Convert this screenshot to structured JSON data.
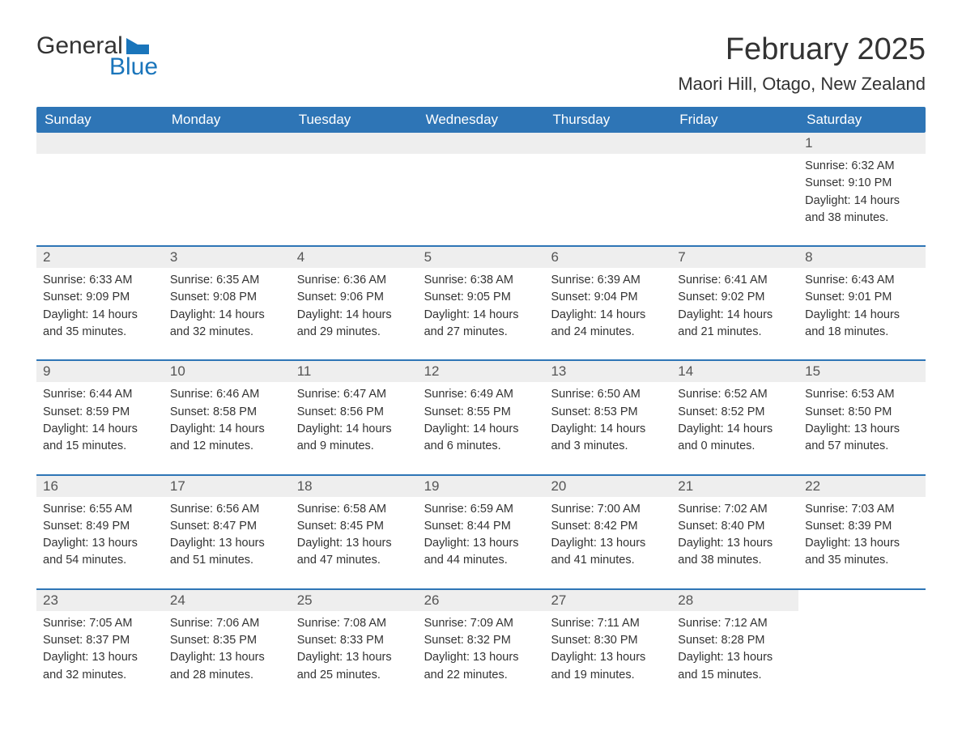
{
  "logo": {
    "general": "General",
    "blue": "Blue"
  },
  "title": "February 2025",
  "location": "Maori Hill, Otago, New Zealand",
  "colors": {
    "header_bg": "#2e75b6",
    "header_text": "#ffffff",
    "day_number_bg": "#eeeeee",
    "day_number_text": "#555555",
    "body_text": "#333333",
    "border": "#2e75b6",
    "logo_blue": "#1a75bb"
  },
  "day_names": [
    "Sunday",
    "Monday",
    "Tuesday",
    "Wednesday",
    "Thursday",
    "Friday",
    "Saturday"
  ],
  "weeks": [
    [
      {
        "empty": true
      },
      {
        "empty": true
      },
      {
        "empty": true
      },
      {
        "empty": true
      },
      {
        "empty": true
      },
      {
        "empty": true
      },
      {
        "num": "1",
        "sunrise": "Sunrise: 6:32 AM",
        "sunset": "Sunset: 9:10 PM",
        "daylight1": "Daylight: 14 hours",
        "daylight2": "and 38 minutes."
      }
    ],
    [
      {
        "num": "2",
        "sunrise": "Sunrise: 6:33 AM",
        "sunset": "Sunset: 9:09 PM",
        "daylight1": "Daylight: 14 hours",
        "daylight2": "and 35 minutes."
      },
      {
        "num": "3",
        "sunrise": "Sunrise: 6:35 AM",
        "sunset": "Sunset: 9:08 PM",
        "daylight1": "Daylight: 14 hours",
        "daylight2": "and 32 minutes."
      },
      {
        "num": "4",
        "sunrise": "Sunrise: 6:36 AM",
        "sunset": "Sunset: 9:06 PM",
        "daylight1": "Daylight: 14 hours",
        "daylight2": "and 29 minutes."
      },
      {
        "num": "5",
        "sunrise": "Sunrise: 6:38 AM",
        "sunset": "Sunset: 9:05 PM",
        "daylight1": "Daylight: 14 hours",
        "daylight2": "and 27 minutes."
      },
      {
        "num": "6",
        "sunrise": "Sunrise: 6:39 AM",
        "sunset": "Sunset: 9:04 PM",
        "daylight1": "Daylight: 14 hours",
        "daylight2": "and 24 minutes."
      },
      {
        "num": "7",
        "sunrise": "Sunrise: 6:41 AM",
        "sunset": "Sunset: 9:02 PM",
        "daylight1": "Daylight: 14 hours",
        "daylight2": "and 21 minutes."
      },
      {
        "num": "8",
        "sunrise": "Sunrise: 6:43 AM",
        "sunset": "Sunset: 9:01 PM",
        "daylight1": "Daylight: 14 hours",
        "daylight2": "and 18 minutes."
      }
    ],
    [
      {
        "num": "9",
        "sunrise": "Sunrise: 6:44 AM",
        "sunset": "Sunset: 8:59 PM",
        "daylight1": "Daylight: 14 hours",
        "daylight2": "and 15 minutes."
      },
      {
        "num": "10",
        "sunrise": "Sunrise: 6:46 AM",
        "sunset": "Sunset: 8:58 PM",
        "daylight1": "Daylight: 14 hours",
        "daylight2": "and 12 minutes."
      },
      {
        "num": "11",
        "sunrise": "Sunrise: 6:47 AM",
        "sunset": "Sunset: 8:56 PM",
        "daylight1": "Daylight: 14 hours",
        "daylight2": "and 9 minutes."
      },
      {
        "num": "12",
        "sunrise": "Sunrise: 6:49 AM",
        "sunset": "Sunset: 8:55 PM",
        "daylight1": "Daylight: 14 hours",
        "daylight2": "and 6 minutes."
      },
      {
        "num": "13",
        "sunrise": "Sunrise: 6:50 AM",
        "sunset": "Sunset: 8:53 PM",
        "daylight1": "Daylight: 14 hours",
        "daylight2": "and 3 minutes."
      },
      {
        "num": "14",
        "sunrise": "Sunrise: 6:52 AM",
        "sunset": "Sunset: 8:52 PM",
        "daylight1": "Daylight: 14 hours",
        "daylight2": "and 0 minutes."
      },
      {
        "num": "15",
        "sunrise": "Sunrise: 6:53 AM",
        "sunset": "Sunset: 8:50 PM",
        "daylight1": "Daylight: 13 hours",
        "daylight2": "and 57 minutes."
      }
    ],
    [
      {
        "num": "16",
        "sunrise": "Sunrise: 6:55 AM",
        "sunset": "Sunset: 8:49 PM",
        "daylight1": "Daylight: 13 hours",
        "daylight2": "and 54 minutes."
      },
      {
        "num": "17",
        "sunrise": "Sunrise: 6:56 AM",
        "sunset": "Sunset: 8:47 PM",
        "daylight1": "Daylight: 13 hours",
        "daylight2": "and 51 minutes."
      },
      {
        "num": "18",
        "sunrise": "Sunrise: 6:58 AM",
        "sunset": "Sunset: 8:45 PM",
        "daylight1": "Daylight: 13 hours",
        "daylight2": "and 47 minutes."
      },
      {
        "num": "19",
        "sunrise": "Sunrise: 6:59 AM",
        "sunset": "Sunset: 8:44 PM",
        "daylight1": "Daylight: 13 hours",
        "daylight2": "and 44 minutes."
      },
      {
        "num": "20",
        "sunrise": "Sunrise: 7:00 AM",
        "sunset": "Sunset: 8:42 PM",
        "daylight1": "Daylight: 13 hours",
        "daylight2": "and 41 minutes."
      },
      {
        "num": "21",
        "sunrise": "Sunrise: 7:02 AM",
        "sunset": "Sunset: 8:40 PM",
        "daylight1": "Daylight: 13 hours",
        "daylight2": "and 38 minutes."
      },
      {
        "num": "22",
        "sunrise": "Sunrise: 7:03 AM",
        "sunset": "Sunset: 8:39 PM",
        "daylight1": "Daylight: 13 hours",
        "daylight2": "and 35 minutes."
      }
    ],
    [
      {
        "num": "23",
        "sunrise": "Sunrise: 7:05 AM",
        "sunset": "Sunset: 8:37 PM",
        "daylight1": "Daylight: 13 hours",
        "daylight2": "and 32 minutes."
      },
      {
        "num": "24",
        "sunrise": "Sunrise: 7:06 AM",
        "sunset": "Sunset: 8:35 PM",
        "daylight1": "Daylight: 13 hours",
        "daylight2": "and 28 minutes."
      },
      {
        "num": "25",
        "sunrise": "Sunrise: 7:08 AM",
        "sunset": "Sunset: 8:33 PM",
        "daylight1": "Daylight: 13 hours",
        "daylight2": "and 25 minutes."
      },
      {
        "num": "26",
        "sunrise": "Sunrise: 7:09 AM",
        "sunset": "Sunset: 8:32 PM",
        "daylight1": "Daylight: 13 hours",
        "daylight2": "and 22 minutes."
      },
      {
        "num": "27",
        "sunrise": "Sunrise: 7:11 AM",
        "sunset": "Sunset: 8:30 PM",
        "daylight1": "Daylight: 13 hours",
        "daylight2": "and 19 minutes."
      },
      {
        "num": "28",
        "sunrise": "Sunrise: 7:12 AM",
        "sunset": "Sunset: 8:28 PM",
        "daylight1": "Daylight: 13 hours",
        "daylight2": "and 15 minutes."
      },
      {
        "empty": true,
        "no_bg": true
      }
    ]
  ]
}
